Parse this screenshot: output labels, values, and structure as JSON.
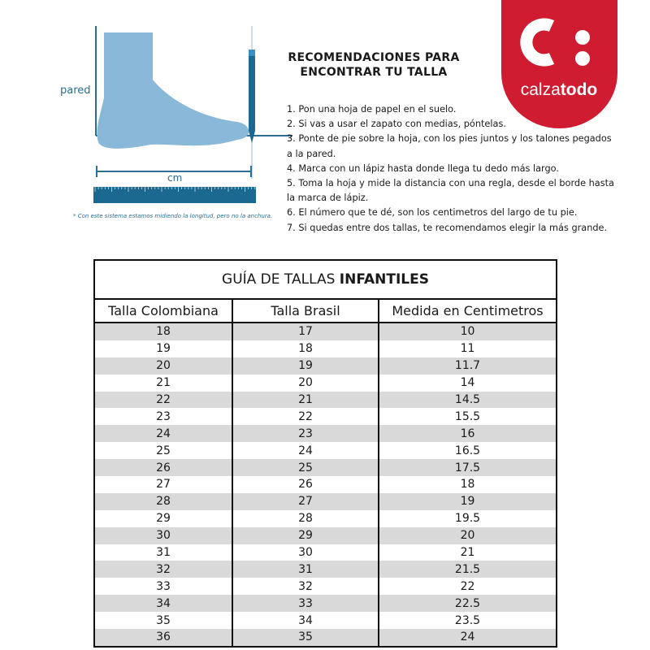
{
  "illustration": {
    "wall_label": "pared",
    "measure_label": "cm",
    "note": "* Con este sistema estamos midiendo la longitud, pero no la anchura.",
    "colors": {
      "foot": "#8ab8d8",
      "lines": "#2c6e95",
      "ruler": "#1b6890"
    }
  },
  "instructions": {
    "title_line1": "RECOMENDACIONES PARA",
    "title_line2": "ENCONTRAR TU TALLA",
    "steps": [
      "1. Pon una hoja de papel en el suelo.",
      "2. Si vas a usar el zapato con medias, póntelas.",
      "3. Ponte de pie sobre la hoja, con los pies juntos y los talones pegados",
      "a la pared.",
      "4. Marca con un lápiz hasta donde llega tu dedo más largo.",
      "5. Toma la hoja y mide la distancia con una regla, desde el borde hasta",
      "la marca de lápiz.",
      "6. El número que te dé, son los centimetros del largo de tu pie.",
      "7. Si quedas entre dos tallas, te recomendamos elegir la más grande."
    ]
  },
  "logo": {
    "brand_light": "calza",
    "brand_bold": "todo",
    "color": "#d01c30"
  },
  "table": {
    "title_prefix": "GUÍA DE TALLAS ",
    "title_bold": "INFANTILES",
    "columns": [
      "Talla Colombiana",
      "Talla Brasil",
      "Medida en Centimetros"
    ],
    "rows": [
      [
        "18",
        "17",
        "10"
      ],
      [
        "19",
        "18",
        "11"
      ],
      [
        "20",
        "19",
        "11.7"
      ],
      [
        "21",
        "20",
        "14"
      ],
      [
        "22",
        "21",
        "14.5"
      ],
      [
        "23",
        "22",
        "15.5"
      ],
      [
        "24",
        "23",
        "16"
      ],
      [
        "25",
        "24",
        "16.5"
      ],
      [
        "26",
        "25",
        "17.5"
      ],
      [
        "27",
        "26",
        "18"
      ],
      [
        "28",
        "27",
        "19"
      ],
      [
        "29",
        "28",
        "19.5"
      ],
      [
        "30",
        "29",
        "20"
      ],
      [
        "31",
        "30",
        "21"
      ],
      [
        "32",
        "31",
        "21.5"
      ],
      [
        "33",
        "32",
        "22"
      ],
      [
        "34",
        "33",
        "22.5"
      ],
      [
        "35",
        "34",
        "23.5"
      ],
      [
        "36",
        "35",
        "24"
      ]
    ],
    "stripe_color": "#d9d9d9"
  }
}
